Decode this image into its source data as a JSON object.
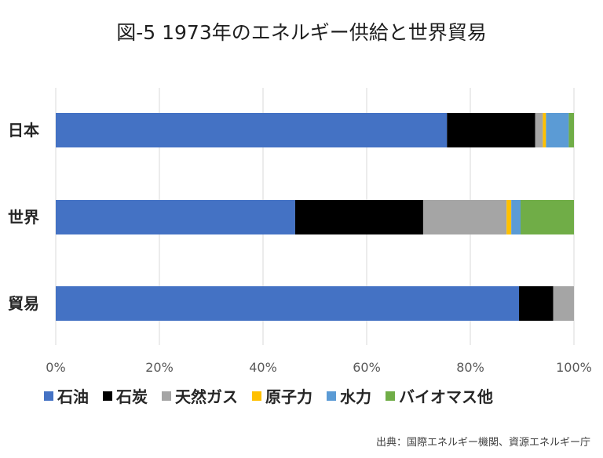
{
  "title": "図-5 1973年のエネルギー供給と世界貿易",
  "source": "出典：国際エネルギー機関、資源エネルギー庁",
  "chart_data": {
    "type": "bar",
    "orientation": "horizontal",
    "stacked": "percent",
    "categories": [
      "日本",
      "世界",
      "貿易"
    ],
    "series": [
      {
        "name": "石油",
        "color": "#4472c4",
        "values": [
          75.5,
          46.2,
          89.4
        ]
      },
      {
        "name": "石炭",
        "color": "#000000",
        "values": [
          17.0,
          24.7,
          6.6
        ]
      },
      {
        "name": "天然ガス",
        "color": "#a5a5a5",
        "values": [
          1.5,
          16.1,
          4.0
        ]
      },
      {
        "name": "原子力",
        "color": "#ffc000",
        "values": [
          0.6,
          0.9,
          0
        ]
      },
      {
        "name": "水力",
        "color": "#5b9bd5",
        "values": [
          4.4,
          1.8,
          0
        ]
      },
      {
        "name": "バイオマス他",
        "color": "#70ad47",
        "values": [
          1.0,
          10.3,
          0
        ]
      }
    ],
    "xlim": [
      0,
      100
    ],
    "xticks": [
      "0%",
      "20%",
      "40%",
      "60%",
      "80%",
      "100%"
    ],
    "grid": "vertical",
    "legend": "bottom"
  }
}
